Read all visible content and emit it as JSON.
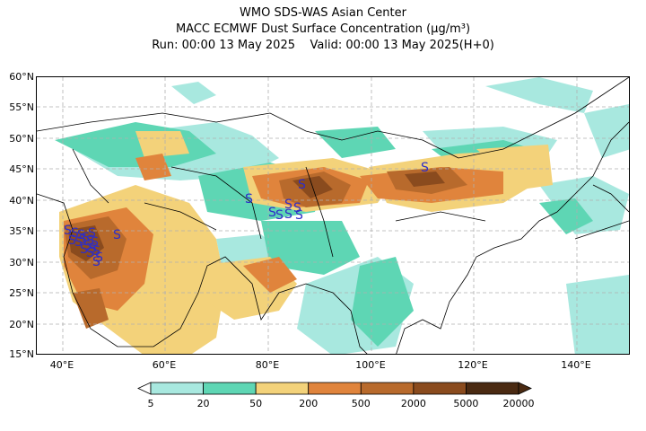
{
  "title": {
    "line1": "WMO SDS-WAS Asian Center",
    "line2": "MACC ECMWF Dust Surface Concentration (μg/m³)",
    "line3": "Run: 00:00 13 May 2025    Valid: 00:00 13 May 2025(H+0)"
  },
  "axes": {
    "lat_labels": [
      "60°N",
      "55°N",
      "50°N",
      "45°N",
      "40°N",
      "35°N",
      "30°N",
      "25°N",
      "20°N",
      "15°N"
    ],
    "lon_labels": [
      "40°E",
      "60°E",
      "80°E",
      "100°E",
      "120°E",
      "140°E"
    ]
  },
  "legend": {
    "levels": [
      "5",
      "20",
      "50",
      "200",
      "500",
      "2000",
      "5000",
      "20000"
    ],
    "colors": [
      "#a8e8df",
      "#5ed6b4",
      "#f3d27a",
      "#e0843c",
      "#b86a2c",
      "#8a4b1e",
      "#4a2a12"
    ]
  },
  "map": {
    "symbol": "S",
    "symbol_color": "#2e2ec8",
    "grid": true
  }
}
